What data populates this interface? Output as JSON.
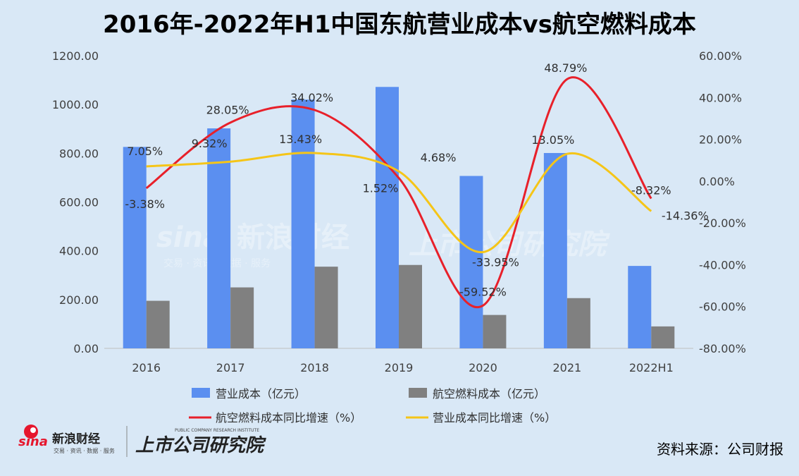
{
  "chart_data": {
    "type": "bar",
    "title": "2016年-2022年H1中国东航营业成本vs航空燃料成本",
    "categories": [
      "2016",
      "2017",
      "2018",
      "2019",
      "2020",
      "2021",
      "2022H1"
    ],
    "series": [
      {
        "name": "营业成本（亿元）",
        "type": "bar",
        "axis": "left",
        "color": "#5b8ff0",
        "values": [
          826,
          902,
          1020,
          1072,
          707,
          801,
          338
        ]
      },
      {
        "name": "航空燃料成本（亿元）",
        "type": "bar",
        "axis": "left",
        "color": "#808080",
        "values": [
          195,
          250,
          335,
          342,
          137,
          206,
          90
        ]
      },
      {
        "name": "航空燃料成本同比增速（%）",
        "type": "line",
        "axis": "right",
        "color": "#e8202a",
        "values": [
          -3.38,
          28.05,
          34.02,
          1.52,
          -59.52,
          48.79,
          -8.32
        ],
        "labels": [
          "-3.38%",
          "28.05%",
          "34.02%",
          "1.52%",
          "-59.52%",
          "48.79%",
          "-8.32%"
        ]
      },
      {
        "name": "营业成本同比增速（%）",
        "type": "line",
        "axis": "right",
        "color": "#f5c518",
        "values": [
          7.05,
          9.32,
          13.43,
          4.68,
          -33.95,
          13.05,
          -14.36
        ],
        "labels": [
          "7.05%",
          "9.32%",
          "13.43%",
          "4.68%",
          "-33.95%",
          "13.05%",
          "-14.36%"
        ]
      }
    ],
    "y_left": {
      "ylim": [
        0,
        1200
      ],
      "ticks": [
        "0.00",
        "200.00",
        "400.00",
        "600.00",
        "800.00",
        "1000.00",
        "1200.00"
      ]
    },
    "y_right": {
      "ylim": [
        -80,
        60
      ],
      "ticks": [
        "-80.00%",
        "-60.00%",
        "-40.00%",
        "-20.00%",
        "0.00%",
        "20.00%",
        "40.00%",
        "60.00%"
      ]
    },
    "legend_position": "bottom",
    "grid": false
  },
  "watermark": {
    "brand": "新浪财经",
    "sina": "sina",
    "sub": "交易 · 资讯 · 数据 · 服务",
    "institute": "上市公司研究院"
  },
  "footer": {
    "sina": "sina",
    "brand": "新浪财经",
    "brand_sub": "交易 · 资讯 · 数据 · 服务",
    "institute": "上市公司研究院",
    "institute_en": "PUBLIC COMPANY RESEARCH INSTITUTE",
    "source": "资料来源：公司财报"
  },
  "colors": {
    "background": "#d9e8f6"
  }
}
